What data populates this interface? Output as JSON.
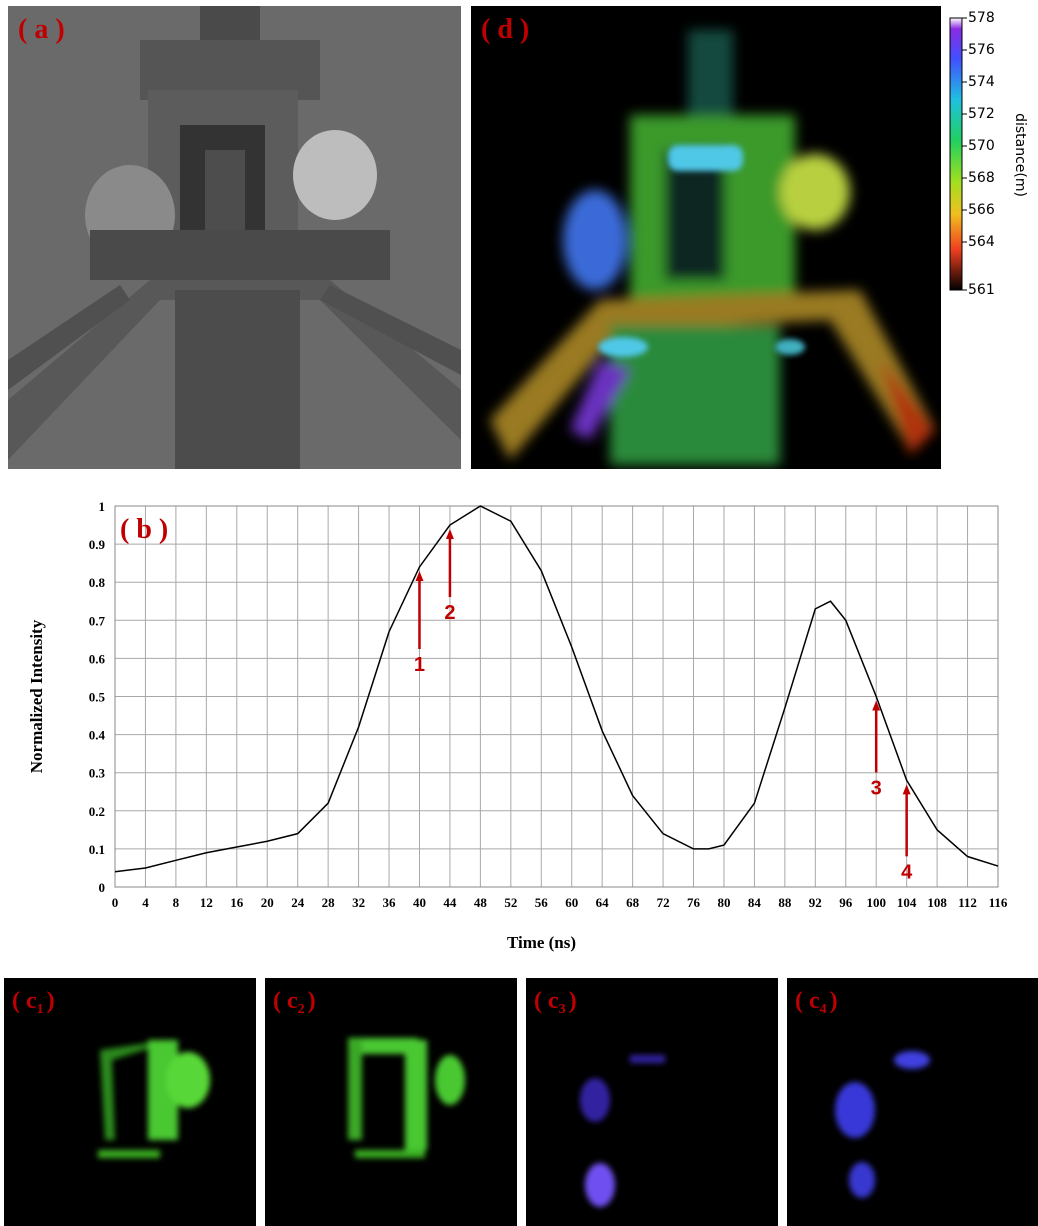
{
  "panels": {
    "a": {
      "label": "( a )"
    },
    "d": {
      "label": "( d )",
      "colorbar": {
        "label": "distance(m)",
        "lim": [
          561,
          578
        ],
        "ticks": [
          578,
          576,
          574,
          572,
          570,
          568,
          566,
          564,
          561
        ]
      }
    },
    "c": [
      {
        "open": "( c",
        "sub": "1",
        "close": ")"
      },
      {
        "open": "( c",
        "sub": "2",
        "close": ")"
      },
      {
        "open": "( c",
        "sub": "3",
        "close": ")"
      },
      {
        "open": "( c",
        "sub": "4",
        "close": ")"
      }
    ]
  },
  "chart_data": {
    "type": "line",
    "label": "( b )",
    "x_label": "Time (ns)",
    "y_label": "Normalized Intensity",
    "color": "#000000",
    "grid": true,
    "x": [
      0,
      4,
      8,
      12,
      16,
      20,
      24,
      28,
      32,
      36,
      40,
      44,
      48,
      52,
      56,
      60,
      64,
      68,
      72,
      76,
      78,
      80,
      84,
      88,
      92,
      94,
      96,
      100,
      104,
      108,
      112,
      116
    ],
    "values": [
      0.04,
      0.05,
      0.07,
      0.09,
      0.105,
      0.12,
      0.14,
      0.22,
      0.42,
      0.67,
      0.84,
      0.95,
      1.0,
      0.96,
      0.83,
      0.63,
      0.41,
      0.24,
      0.14,
      0.1,
      0.1,
      0.11,
      0.22,
      0.47,
      0.73,
      0.75,
      0.7,
      0.5,
      0.28,
      0.15,
      0.08,
      0.055
    ],
    "xlim": [
      0,
      116
    ],
    "xticks": [
      0,
      4,
      8,
      12,
      16,
      20,
      24,
      28,
      32,
      36,
      40,
      44,
      48,
      52,
      56,
      60,
      64,
      68,
      72,
      76,
      80,
      84,
      88,
      92,
      96,
      100,
      104,
      108,
      112,
      116
    ],
    "ylim": [
      0,
      1
    ],
    "yticks": [
      0,
      0.1,
      0.2,
      0.3,
      0.4,
      0.5,
      0.6,
      0.7,
      0.8,
      0.9,
      1
    ],
    "annotations": [
      {
        "text": "1",
        "x": 40
      },
      {
        "text": "2",
        "x": 44
      },
      {
        "text": "3",
        "x": 100
      },
      {
        "text": "4",
        "x": 104
      }
    ]
  }
}
